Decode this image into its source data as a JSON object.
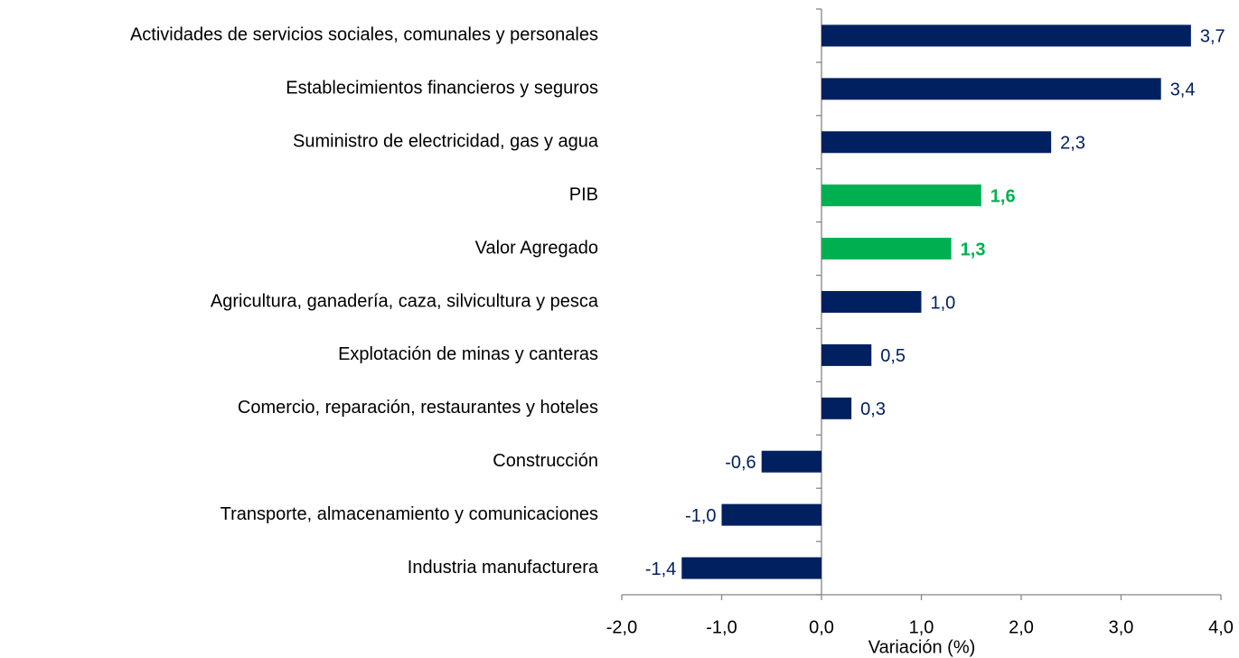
{
  "chart_data": {
    "type": "bar",
    "orientation": "horizontal",
    "x_label": "Variación (%)",
    "categories": [
      "Actividades de servicios sociales, comunales y personales",
      "Establecimientos financieros y seguros",
      "Suministro de electricidad, gas y agua",
      "PIB",
      "Valor Agregado",
      "Agricultura, ganadería, caza, silvicultura y pesca",
      "Explotación de minas y canteras",
      "Comercio, reparación, restaurantes y hoteles",
      "Construcción",
      "Transporte, almacenamiento y comunicaciones",
      "Industria manufacturera"
    ],
    "values": [
      3.7,
      3.4,
      2.3,
      1.6,
      1.3,
      1.0,
      0.5,
      0.3,
      -0.6,
      -1.0,
      -1.4
    ],
    "value_labels": [
      "3,7",
      "3,4",
      "2,3",
      "1,6",
      "1,3",
      "1,0",
      "0,5",
      "0,3",
      "-0,6",
      "-1,0",
      "-1,4"
    ],
    "colors": [
      "#002060",
      "#002060",
      "#002060",
      "#00b050",
      "#00b050",
      "#002060",
      "#002060",
      "#002060",
      "#002060",
      "#002060",
      "#002060"
    ],
    "xlim": [
      -2,
      4
    ],
    "xticks": [
      {
        "value": -2,
        "label": "-2,0"
      },
      {
        "value": -1,
        "label": "-1,0"
      },
      {
        "value": 0,
        "label": "0,0"
      },
      {
        "value": 1,
        "label": "1,0"
      },
      {
        "value": 2,
        "label": "2,0"
      },
      {
        "value": 3,
        "label": "3,0"
      },
      {
        "value": 4,
        "label": "4,0"
      }
    ],
    "grid": false
  }
}
